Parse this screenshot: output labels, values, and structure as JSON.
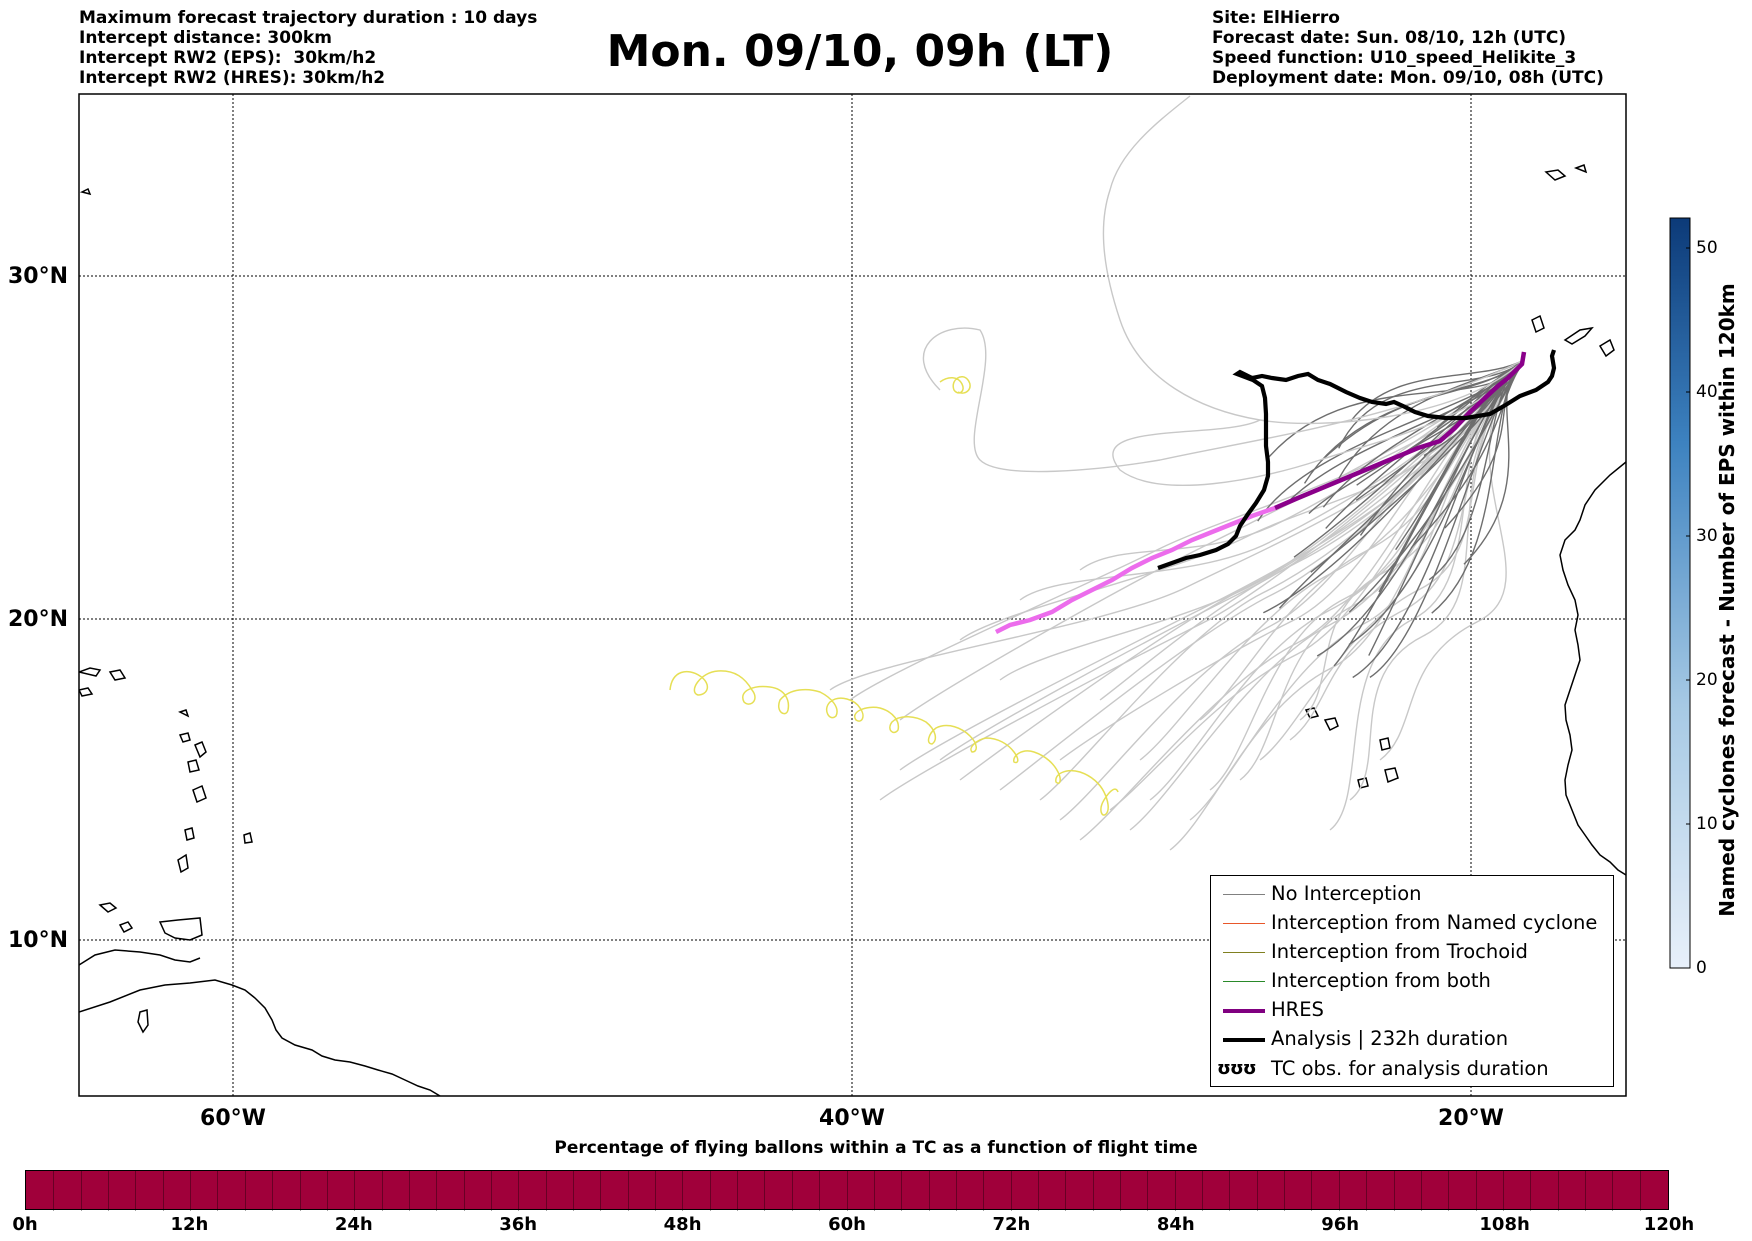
{
  "header_left": {
    "line1": "Maximum forecast trajectory duration : 10 days",
    "line2": "Intercept distance: 300km",
    "line3": "Intercept RW2 (EPS):  30km/h2",
    "line4": "Intercept RW2 (HRES): 30km/h2"
  },
  "title": "Mon. 09/10, 09h (LT)",
  "header_right": {
    "line1": "Site: ElHierro",
    "line2": "Forecast date: Sun. 08/10, 12h (UTC)",
    "line3": "Speed function: U10_speed_Helikite_3",
    "line4": "Deployment date: Mon. 09/10, 08h (UTC)"
  },
  "map": {
    "lat_labels": [
      "30°N",
      "20°N",
      "10°N"
    ],
    "lon_labels": [
      "60°W",
      "40°W",
      "20°W"
    ]
  },
  "legend": {
    "items": [
      {
        "label": "No Interception",
        "color": "#808080",
        "style": "line"
      },
      {
        "label": "Interception from Named cyclone",
        "color": "#e8572a",
        "style": "line"
      },
      {
        "label": "Interception from Trochoid",
        "color": "#808020",
        "style": "line"
      },
      {
        "label": "Interception from both",
        "color": "#2a8a2a",
        "style": "line"
      },
      {
        "label": "HRES",
        "color": "#800080",
        "style": "thick"
      },
      {
        "label": "Analysis | 232h duration",
        "color": "#000000",
        "style": "thick"
      },
      {
        "label": "TC obs. for analysis duration",
        "color": "#000000",
        "style": "symbol",
        "symbol": "ʊʊʊ"
      }
    ]
  },
  "colorbar": {
    "label": "Named cyclones forecast - Number of EPS within 120km",
    "ticks": [
      "0",
      "10",
      "20",
      "30",
      "40",
      "50"
    ],
    "range": [
      0,
      52
    ]
  },
  "bottom": {
    "title": "Percentage of flying ballons within a TC as a function of flight time",
    "ticks": [
      "0h",
      "12h",
      "24h",
      "36h",
      "48h",
      "60h",
      "72h",
      "84h",
      "96h",
      "108h",
      "120h"
    ],
    "color": "#a0003a"
  }
}
